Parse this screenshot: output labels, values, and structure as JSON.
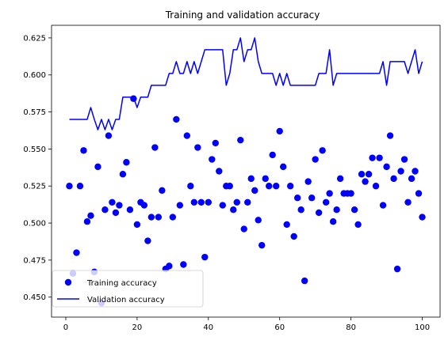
{
  "chart_data": {
    "type": "line",
    "title": "Training and validation accuracy",
    "xlabel": "",
    "ylabel": "",
    "xlim": [
      -4,
      105
    ],
    "ylim": [
      0.4365,
      0.6335
    ],
    "xticks": [
      0,
      20,
      40,
      60,
      80,
      100
    ],
    "yticks": [
      0.45,
      0.475,
      0.5,
      0.525,
      0.55,
      0.575,
      0.6,
      0.625
    ],
    "xtick_labels": [
      "0",
      "20",
      "40",
      "60",
      "80",
      "100"
    ],
    "ytick_labels": [
      "0.450",
      "0.475",
      "0.500",
      "0.525",
      "0.550",
      "0.575",
      "0.600",
      "0.625"
    ],
    "legend_position": "lower-left",
    "grid": false,
    "x": [
      1,
      2,
      3,
      4,
      5,
      6,
      7,
      8,
      9,
      10,
      11,
      12,
      13,
      14,
      15,
      16,
      17,
      18,
      19,
      20,
      21,
      22,
      23,
      24,
      25,
      26,
      27,
      28,
      29,
      30,
      31,
      32,
      33,
      34,
      35,
      36,
      37,
      38,
      39,
      40,
      41,
      42,
      43,
      44,
      45,
      46,
      47,
      48,
      49,
      50,
      51,
      52,
      53,
      54,
      55,
      56,
      57,
      58,
      59,
      60,
      61,
      62,
      63,
      64,
      65,
      66,
      67,
      68,
      69,
      70,
      71,
      72,
      73,
      74,
      75,
      76,
      77,
      78,
      79,
      80,
      81,
      82,
      83,
      84,
      85,
      86,
      87,
      88,
      89,
      90,
      91,
      92,
      93,
      94,
      95,
      96,
      97,
      98,
      99,
      100
    ],
    "series": [
      {
        "name": "Training accuracy",
        "style": "markers",
        "color": "#0000ff",
        "values": [
          0.525,
          0.466,
          0.48,
          0.525,
          0.549,
          0.501,
          0.505,
          0.467,
          0.538,
          0.446,
          0.509,
          0.559,
          0.514,
          0.507,
          0.512,
          0.533,
          0.541,
          0.509,
          0.584,
          0.499,
          0.514,
          0.512,
          0.488,
          0.504,
          0.551,
          0.504,
          0.522,
          0.469,
          0.471,
          0.504,
          0.57,
          0.512,
          0.472,
          0.559,
          0.525,
          0.514,
          0.551,
          0.514,
          0.477,
          0.514,
          0.543,
          0.554,
          0.535,
          0.512,
          0.525,
          0.525,
          0.509,
          0.514,
          0.556,
          0.496,
          0.514,
          0.53,
          0.522,
          0.502,
          0.485,
          0.53,
          0.525,
          0.546,
          0.525,
          0.562,
          0.538,
          0.499,
          0.525,
          0.491,
          0.517,
          0.509,
          0.461,
          0.528,
          0.517,
          0.543,
          0.507,
          0.549,
          0.514,
          0.52,
          0.501,
          0.509,
          0.53,
          0.52,
          0.52,
          0.52,
          0.509,
          0.499,
          0.533,
          0.528,
          0.533,
          0.544,
          0.525,
          0.544,
          0.512,
          0.538,
          0.559,
          0.53,
          0.469,
          0.535,
          0.543,
          0.514,
          0.53,
          0.535,
          0.52,
          0.504
        ]
      },
      {
        "name": "Validation accuracy",
        "style": "line",
        "color": "#0000ff",
        "values": [
          0.57,
          0.57,
          0.57,
          0.57,
          0.57,
          0.57,
          0.578,
          0.57,
          0.563,
          0.57,
          0.563,
          0.57,
          0.563,
          0.57,
          0.57,
          0.585,
          0.585,
          0.585,
          0.585,
          0.578,
          0.585,
          0.585,
          0.585,
          0.593,
          0.593,
          0.593,
          0.593,
          0.593,
          0.601,
          0.601,
          0.609,
          0.601,
          0.601,
          0.609,
          0.601,
          0.609,
          0.601,
          0.609,
          0.617,
          0.617,
          0.617,
          0.617,
          0.617,
          0.617,
          0.593,
          0.601,
          0.617,
          0.617,
          0.625,
          0.609,
          0.617,
          0.617,
          0.625,
          0.609,
          0.601,
          0.601,
          0.601,
          0.601,
          0.593,
          0.601,
          0.593,
          0.601,
          0.593,
          0.593,
          0.593,
          0.593,
          0.593,
          0.593,
          0.593,
          0.593,
          0.601,
          0.601,
          0.601,
          0.617,
          0.593,
          0.601,
          0.601,
          0.601,
          0.601,
          0.601,
          0.601,
          0.601,
          0.601,
          0.601,
          0.601,
          0.601,
          0.601,
          0.601,
          0.609,
          0.593,
          0.609,
          0.609,
          0.609,
          0.609,
          0.609,
          0.601,
          0.609,
          0.617,
          0.601,
          0.609
        ]
      }
    ]
  }
}
